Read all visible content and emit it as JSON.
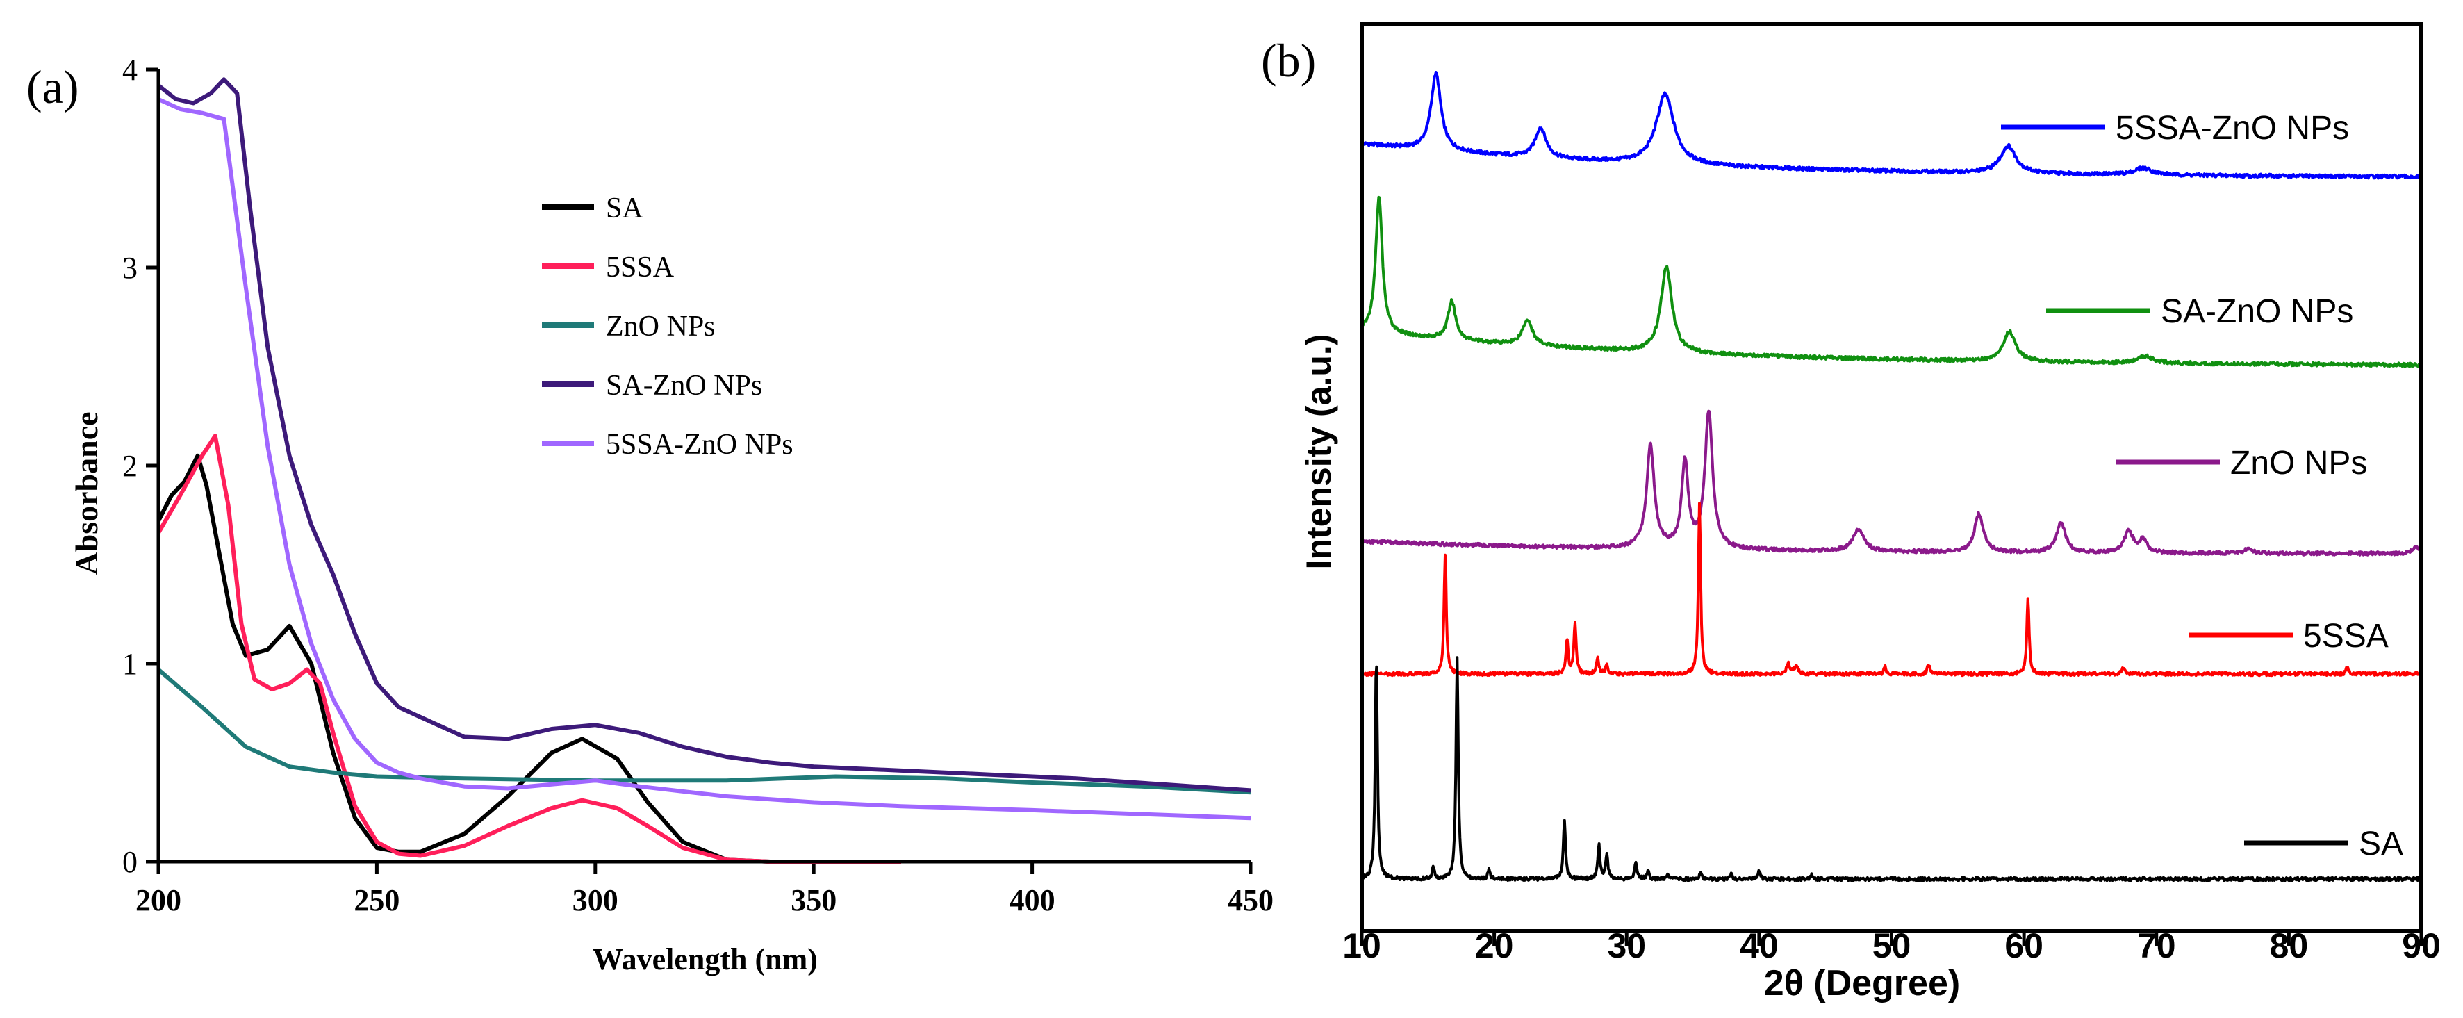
{
  "chart_data": [
    {
      "panel_label": "(a)",
      "type": "line",
      "title": "",
      "xlabel": "Wavelength (nm)",
      "ylabel": "Absorbance",
      "xlim": [
        200,
        450
      ],
      "ylim": [
        0,
        4
      ],
      "xticks": [
        200,
        250,
        300,
        350,
        400,
        450
      ],
      "yticks": [
        0,
        1,
        2,
        3,
        4
      ],
      "legend_position": "upper-middle",
      "series": [
        {
          "name": "SA",
          "color": "#000000",
          "x": [
            200,
            203,
            206,
            209,
            211,
            214,
            217,
            220,
            225,
            230,
            235,
            240,
            245,
            250,
            255,
            260,
            270,
            280,
            290,
            297,
            305,
            312,
            320,
            330,
            340,
            350
          ],
          "y": [
            1.72,
            1.85,
            1.92,
            2.05,
            1.9,
            1.55,
            1.2,
            1.04,
            1.07,
            1.19,
            1.0,
            0.55,
            0.22,
            0.07,
            0.05,
            0.05,
            0.14,
            0.33,
            0.55,
            0.62,
            0.52,
            0.3,
            0.1,
            0.01,
            0.0,
            0.0
          ]
        },
        {
          "name": "5SSA",
          "color": "#ff1f5a",
          "x": [
            200,
            205,
            210,
            213,
            216,
            219,
            222,
            226,
            230,
            234,
            237,
            240,
            245,
            250,
            255,
            260,
            270,
            280,
            290,
            297,
            305,
            312,
            320,
            330,
            340,
            350,
            370
          ],
          "y": [
            1.66,
            1.85,
            2.05,
            2.15,
            1.8,
            1.2,
            0.92,
            0.87,
            0.9,
            0.97,
            0.9,
            0.65,
            0.28,
            0.1,
            0.04,
            0.03,
            0.08,
            0.18,
            0.27,
            0.31,
            0.27,
            0.18,
            0.07,
            0.01,
            0.0,
            0.0,
            0.0
          ]
        },
        {
          "name": "ZnO NPs",
          "color": "#1f7a78",
          "x": [
            200,
            210,
            220,
            230,
            240,
            250,
            270,
            300,
            330,
            355,
            380,
            400,
            425,
            450
          ],
          "y": [
            0.97,
            0.78,
            0.58,
            0.48,
            0.45,
            0.43,
            0.42,
            0.41,
            0.41,
            0.43,
            0.42,
            0.4,
            0.38,
            0.35
          ]
        },
        {
          "name": "SA-ZnO NPs",
          "color": "#3d1a7a",
          "x": [
            200,
            204,
            208,
            212,
            215,
            218,
            221,
            225,
            230,
            235,
            240,
            245,
            250,
            255,
            260,
            270,
            280,
            290,
            300,
            310,
            320,
            330,
            340,
            350,
            370,
            390,
            410,
            430,
            450
          ],
          "y": [
            3.92,
            3.85,
            3.83,
            3.88,
            3.95,
            3.88,
            3.3,
            2.6,
            2.05,
            1.7,
            1.45,
            1.15,
            0.9,
            0.78,
            0.73,
            0.63,
            0.62,
            0.67,
            0.69,
            0.65,
            0.58,
            0.53,
            0.5,
            0.48,
            0.46,
            0.44,
            0.42,
            0.39,
            0.36
          ]
        },
        {
          "name": "5SSA-ZnO NPs",
          "color": "#a067ff",
          "x": [
            200,
            205,
            210,
            215,
            220,
            225,
            230,
            235,
            240,
            245,
            250,
            255,
            260,
            270,
            280,
            290,
            300,
            310,
            330,
            350,
            370,
            400,
            425,
            450
          ],
          "y": [
            3.85,
            3.8,
            3.78,
            3.75,
            2.9,
            2.1,
            1.5,
            1.1,
            0.82,
            0.62,
            0.5,
            0.45,
            0.42,
            0.38,
            0.37,
            0.39,
            0.41,
            0.38,
            0.33,
            0.3,
            0.28,
            0.26,
            0.24,
            0.22
          ]
        }
      ]
    },
    {
      "panel_label": "(b)",
      "type": "line",
      "title": "",
      "xlabel": "2θ (Degree)",
      "ylabel": "Intensity (a.u.)",
      "xlim": [
        10,
        90
      ],
      "xticks": [
        10,
        20,
        30,
        40,
        50,
        60,
        70,
        80,
        90
      ],
      "legend_position": "inline-right",
      "series": [
        {
          "name": "5SSA-ZnO NPs",
          "color": "#0000ff",
          "offset": 0.82,
          "peaks": [
            [
              15.6,
              0.09,
              0.45
            ],
            [
              23.5,
              0.035,
              0.5
            ],
            [
              32.9,
              0.082,
              0.8
            ],
            [
              58.8,
              0.032,
              0.7
            ],
            [
              69.0,
              0.008,
              0.8
            ]
          ],
          "baseline": [
            0.04,
            0.0
          ]
        },
        {
          "name": "SA-ZnO NPs",
          "color": "#109010",
          "offset": 0.6,
          "peaks": [
            [
              11.3,
              0.16,
              0.3
            ],
            [
              16.8,
              0.045,
              0.35
            ],
            [
              22.5,
              0.03,
              0.45
            ],
            [
              33.0,
              0.1,
              0.5
            ],
            [
              58.9,
              0.035,
              0.55
            ],
            [
              69.2,
              0.008,
              0.7
            ]
          ],
          "baseline": [
            0.04,
            0.0
          ]
        },
        {
          "name": "ZnO NPs",
          "color": "#8b198b",
          "offset": 0.38,
          "peaks": [
            [
              31.8,
              0.12,
              0.35
            ],
            [
              34.4,
              0.1,
              0.3
            ],
            [
              36.2,
              0.16,
              0.35
            ],
            [
              47.5,
              0.025,
              0.5
            ],
            [
              56.6,
              0.045,
              0.4
            ],
            [
              62.8,
              0.035,
              0.4
            ],
            [
              67.9,
              0.025,
              0.4
            ],
            [
              69.0,
              0.015,
              0.35
            ],
            [
              76.9,
              0.005,
              0.4
            ],
            [
              89.6,
              0.008,
              0.3
            ]
          ],
          "baseline": [
            0.015,
            0.0
          ]
        },
        {
          "name": "5SSA",
          "color": "#ff0000",
          "offset": 0.24,
          "peaks": [
            [
              16.3,
              0.14,
              0.1
            ],
            [
              25.5,
              0.04,
              0.1
            ],
            [
              26.1,
              0.06,
              0.1
            ],
            [
              27.8,
              0.02,
              0.1
            ],
            [
              28.5,
              0.012,
              0.1
            ],
            [
              35.5,
              0.2,
              0.1
            ],
            [
              42.2,
              0.012,
              0.15
            ],
            [
              42.8,
              0.01,
              0.15
            ],
            [
              49.5,
              0.008,
              0.1
            ],
            [
              52.8,
              0.012,
              0.1
            ],
            [
              60.3,
              0.09,
              0.1
            ],
            [
              67.5,
              0.008,
              0.1
            ],
            [
              84.4,
              0.008,
              0.1
            ]
          ],
          "baseline": [
            0.0,
            0.0
          ]
        },
        {
          "name": "SA",
          "color": "#000000",
          "offset": 0.0,
          "peaks": [
            [
              11.1,
              0.26,
              0.1
            ],
            [
              15.4,
              0.015,
              0.1
            ],
            [
              17.2,
              0.26,
              0.1
            ],
            [
              19.6,
              0.01,
              0.1
            ],
            [
              25.3,
              0.07,
              0.1
            ],
            [
              27.9,
              0.04,
              0.1
            ],
            [
              28.5,
              0.03,
              0.1
            ],
            [
              30.7,
              0.02,
              0.1
            ],
            [
              31.6,
              0.01,
              0.1
            ],
            [
              33.1,
              0.006,
              0.1
            ],
            [
              35.6,
              0.008,
              0.1
            ],
            [
              37.9,
              0.006,
              0.1
            ],
            [
              40.0,
              0.01,
              0.1
            ],
            [
              44.0,
              0.005,
              0.1
            ]
          ],
          "baseline": [
            0.0,
            0.0
          ]
        }
      ]
    }
  ]
}
